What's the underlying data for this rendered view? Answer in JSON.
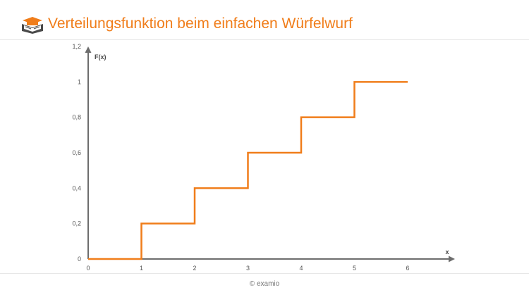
{
  "header": {
    "title": "Verteilungsfunktion beim einfachen Würfelwurf",
    "logo_icon": "book-graduation-cap-icon",
    "accent_color": "#f07d1a"
  },
  "footer": {
    "copyright": "© examio"
  },
  "chart_data": {
    "type": "line",
    "step": true,
    "title": "",
    "xlabel": "x",
    "ylabel": "F(x)",
    "x_ticks": [
      "0",
      "1",
      "2",
      "3",
      "4",
      "5",
      "6"
    ],
    "y_ticks": [
      "0",
      "0,2",
      "0,4",
      "0,6",
      "0,8",
      "1",
      "1,2"
    ],
    "xlim": [
      0,
      6.9
    ],
    "ylim": [
      0,
      1.2
    ],
    "grid": false,
    "series": [
      {
        "color": "#f07d1a",
        "points": [
          [
            0,
            0
          ],
          [
            1,
            0
          ],
          [
            1,
            0.2
          ],
          [
            2,
            0.2
          ],
          [
            2,
            0.4
          ],
          [
            3,
            0.4
          ],
          [
            3,
            0.6
          ],
          [
            4,
            0.6
          ],
          [
            4,
            0.8
          ],
          [
            5,
            0.8
          ],
          [
            5,
            1.0
          ],
          [
            6,
            1.0
          ]
        ]
      }
    ]
  }
}
